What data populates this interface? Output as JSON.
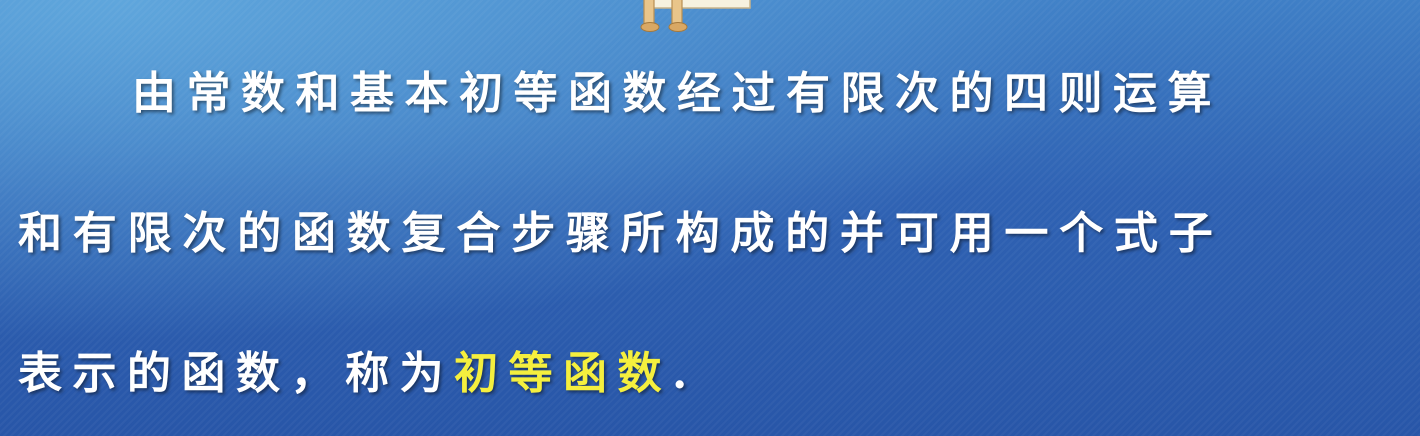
{
  "paragraph": {
    "line1": "由常数和基本初等函数经过有限次的四则运算",
    "line2": "和有限次的函数复合步骤所构成的并可用一个式子",
    "line3_prefix": "表示的函数，称为",
    "line3_highlight": "初等函数",
    "line3_suffix": "."
  },
  "colors": {
    "background": "#2f62b3",
    "text": "#ffffff",
    "highlight": "#f5ef3e"
  },
  "icons": {
    "top_figure": "cartoon-figure-holding-sign"
  }
}
